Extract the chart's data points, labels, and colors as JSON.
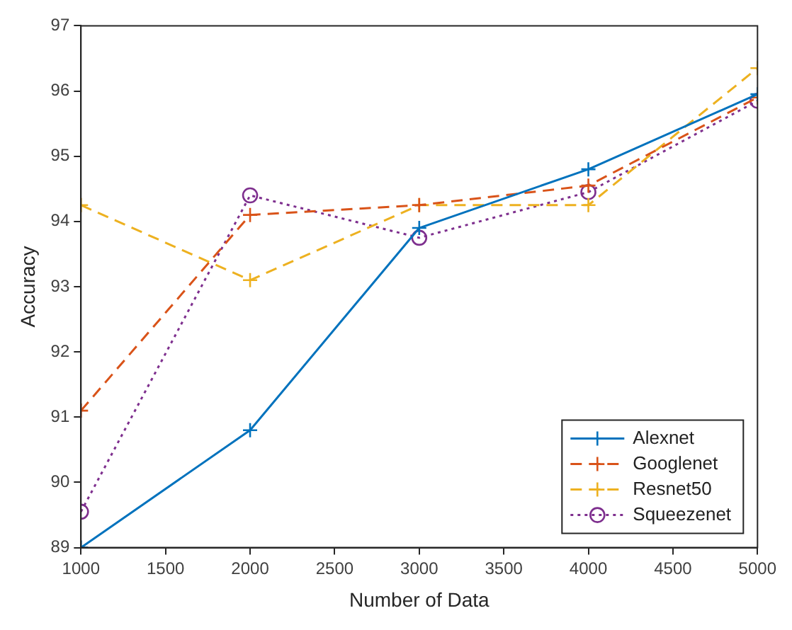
{
  "chart_data": {
    "type": "line",
    "xlabel": "Number of Data",
    "ylabel": "Accuracy",
    "x": [
      1000,
      2000,
      3000,
      4000,
      5000
    ],
    "xlim": [
      1000,
      5000
    ],
    "xticks": [
      1000,
      1500,
      2000,
      2500,
      3000,
      3500,
      4000,
      4500,
      5000
    ],
    "ylim": [
      89,
      97
    ],
    "yticks": [
      89,
      90,
      91,
      92,
      93,
      94,
      95,
      96,
      97
    ],
    "grid": false,
    "legend": "bottom right",
    "series": [
      {
        "name": "Alexnet",
        "color": "#0072bd",
        "marker": "cross",
        "line_style": "solid",
        "values": [
          89.0,
          90.8,
          93.9,
          94.8,
          95.95
        ]
      },
      {
        "name": "Googlenet",
        "color": "#d95319",
        "marker": "cross",
        "line_style": "dashed",
        "values": [
          91.1,
          94.1,
          94.25,
          94.55,
          95.9
        ]
      },
      {
        "name": "Resnet50",
        "color": "#edb120",
        "marker": "cross",
        "line_style": "dashed",
        "values": [
          94.25,
          93.1,
          94.25,
          94.25,
          96.35
        ]
      },
      {
        "name": "Squeezenet",
        "color": "#7e2f8e",
        "marker": "circle",
        "line_style": "dotted",
        "values": [
          89.55,
          94.4,
          93.75,
          94.45,
          95.85
        ]
      }
    ]
  }
}
